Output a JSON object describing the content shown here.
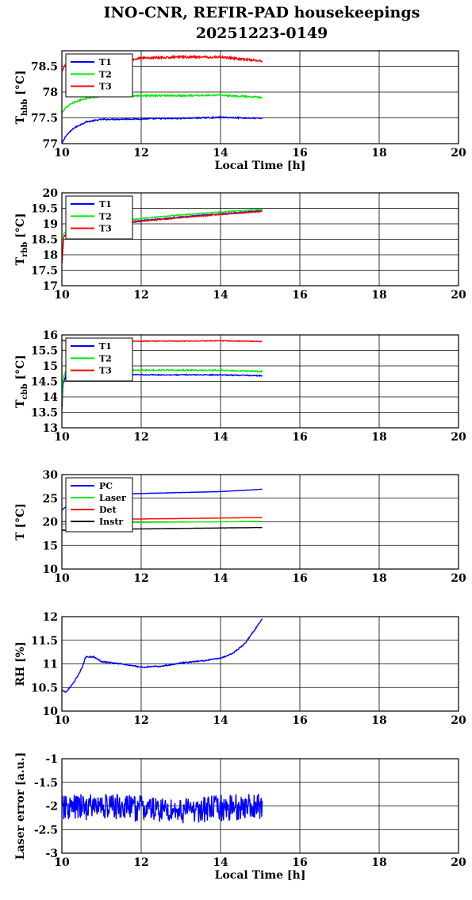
{
  "figure": {
    "title_line1": "INO-CNR, REFIR-PAD housekeepings",
    "title_line2": "20251223-0149"
  },
  "chart_data": [
    {
      "type": "line",
      "id": "hbb",
      "ylabel_main": "T",
      "ylabel_sub": "hbb",
      "ylabel_unit": " [°C]",
      "xlabel": "Local Time [h]",
      "xlim": [
        10,
        20
      ],
      "ylim": [
        77,
        78.8
      ],
      "xticks": [
        10,
        12,
        14,
        16,
        18,
        20
      ],
      "yticks": [
        77,
        77.5,
        78,
        78.5
      ],
      "ytick_labels": [
        "77",
        "77.5",
        "78",
        "78.5"
      ],
      "grid": true,
      "legend": "top-left",
      "series": [
        {
          "name": "T1",
          "color": "#0000ff",
          "noise": 0.012,
          "x": [
            10.0,
            10.1,
            10.3,
            10.6,
            11.0,
            12.0,
            13.0,
            14.0,
            15.05
          ],
          "y": [
            77.0,
            77.15,
            77.3,
            77.42,
            77.47,
            77.48,
            77.49,
            77.51,
            77.49
          ]
        },
        {
          "name": "T2",
          "color": "#00ee00",
          "noise": 0.015,
          "x": [
            10.0,
            10.1,
            10.3,
            10.6,
            11.0,
            12.0,
            13.0,
            14.0,
            15.05
          ],
          "y": [
            77.6,
            77.7,
            77.8,
            77.88,
            77.92,
            77.93,
            77.93,
            77.94,
            77.9
          ]
        },
        {
          "name": "T3",
          "color": "#ff0000",
          "noise": 0.02,
          "x": [
            10.0,
            10.1,
            10.3,
            10.8,
            11.5,
            12.0,
            13.0,
            14.0,
            15.05
          ],
          "y": [
            78.4,
            78.55,
            78.65,
            78.62,
            78.6,
            78.66,
            78.68,
            78.68,
            78.6
          ]
        }
      ]
    },
    {
      "type": "line",
      "id": "rbb",
      "ylabel_main": "T",
      "ylabel_sub": "rbb",
      "ylabel_unit": " [°C]",
      "xlabel": "",
      "xlim": [
        10,
        20
      ],
      "ylim": [
        17,
        20
      ],
      "xticks": [
        10,
        12,
        14,
        16,
        18,
        20
      ],
      "yticks": [
        17,
        17.5,
        18,
        18.5,
        19,
        19.5,
        20
      ],
      "ytick_labels": [
        "17",
        "17.5",
        "18",
        "18.5",
        "19",
        "19.5",
        "20"
      ],
      "grid": true,
      "legend": "top-left",
      "series": [
        {
          "name": "T1",
          "color": "#0000ff",
          "noise": 0.015,
          "x": [
            10.0,
            10.05,
            10.3,
            11.0,
            12.0,
            13.0,
            14.0,
            15.05
          ],
          "y": [
            17.8,
            18.6,
            18.8,
            18.95,
            19.1,
            19.22,
            19.32,
            19.42
          ]
        },
        {
          "name": "T2",
          "color": "#00ee00",
          "noise": 0.015,
          "x": [
            10.0,
            10.05,
            10.3,
            11.0,
            12.0,
            13.0,
            14.0,
            15.05
          ],
          "y": [
            17.9,
            18.7,
            18.85,
            19.02,
            19.17,
            19.29,
            19.38,
            19.47
          ]
        },
        {
          "name": "T3",
          "color": "#ff0000",
          "noise": 0.015,
          "x": [
            10.0,
            10.05,
            10.3,
            11.0,
            12.0,
            13.0,
            14.0,
            15.05
          ],
          "y": [
            17.7,
            18.6,
            18.78,
            18.93,
            19.08,
            19.2,
            19.3,
            19.4
          ]
        }
      ]
    },
    {
      "type": "line",
      "id": "cbb",
      "ylabel_main": "T",
      "ylabel_sub": "cbb",
      "ylabel_unit": " [°C]",
      "xlabel": "",
      "xlim": [
        10,
        20
      ],
      "ylim": [
        13,
        16
      ],
      "xticks": [
        10,
        12,
        14,
        16,
        18,
        20
      ],
      "yticks": [
        13,
        13.5,
        14,
        14.5,
        15,
        15.5,
        16
      ],
      "ytick_labels": [
        "13",
        "13.5",
        "14",
        "14.5",
        "15",
        "15.5",
        "16"
      ],
      "grid": true,
      "legend": "top-left",
      "series": [
        {
          "name": "T1",
          "color": "#0000ff",
          "noise": 0.015,
          "x": [
            10.0,
            10.03,
            10.1,
            10.3,
            11.0,
            12.0,
            13.0,
            14.0,
            15.05
          ],
          "y": [
            13.6,
            14.4,
            14.7,
            14.75,
            14.72,
            14.71,
            14.71,
            14.71,
            14.68
          ]
        },
        {
          "name": "T2",
          "color": "#00ee00",
          "noise": 0.02,
          "x": [
            10.0,
            10.03,
            10.1,
            10.3,
            11.0,
            12.0,
            13.0,
            14.0,
            15.05
          ],
          "y": [
            13.8,
            14.6,
            14.85,
            14.88,
            14.87,
            14.86,
            14.86,
            14.86,
            14.82
          ]
        },
        {
          "name": "T3",
          "color": "#ff0000",
          "noise": 0.012,
          "x": [
            10.0,
            10.3,
            11.0,
            12.0,
            13.0,
            14.0,
            15.05
          ],
          "y": [
            15.82,
            15.8,
            15.79,
            15.8,
            15.8,
            15.81,
            15.79
          ]
        }
      ]
    },
    {
      "type": "line",
      "id": "temps",
      "ylabel_main": "T [°C]",
      "ylabel_sub": "",
      "ylabel_unit": "",
      "xlabel": "",
      "xlim": [
        10,
        20
      ],
      "ylim": [
        10,
        30
      ],
      "xticks": [
        10,
        12,
        14,
        16,
        18,
        20
      ],
      "yticks": [
        10,
        15,
        20,
        25,
        30
      ],
      "ytick_labels": [
        "10",
        "15",
        "20",
        "25",
        "30"
      ],
      "grid": true,
      "legend": "top-left",
      "series": [
        {
          "name": "PC",
          "color": "#0000ff",
          "noise": 0.03,
          "x": [
            10.0,
            10.3,
            11.0,
            12.0,
            13.0,
            14.0,
            15.05
          ],
          "y": [
            22.5,
            24.5,
            25.7,
            26.0,
            26.2,
            26.4,
            26.9
          ]
        },
        {
          "name": "Laser",
          "color": "#00ee00",
          "noise": 0.03,
          "x": [
            10.0,
            10.3,
            11.0,
            12.0,
            13.0,
            14.0,
            15.05
          ],
          "y": [
            19.5,
            19.7,
            19.8,
            19.9,
            19.95,
            20.0,
            20.1
          ]
        },
        {
          "name": "Det",
          "color": "#ff0000",
          "noise": 0.02,
          "x": [
            10.0,
            10.3,
            11.0,
            12.0,
            13.0,
            14.0,
            15.05
          ],
          "y": [
            20.0,
            20.3,
            20.5,
            20.6,
            20.7,
            20.8,
            20.9
          ]
        },
        {
          "name": "Instr",
          "color": "#000000",
          "noise": 0.02,
          "x": [
            10.0,
            10.3,
            11.0,
            12.0,
            13.0,
            14.0,
            15.05
          ],
          "y": [
            18.2,
            18.3,
            18.4,
            18.5,
            18.6,
            18.7,
            18.8
          ]
        }
      ]
    },
    {
      "type": "line",
      "id": "rh",
      "ylabel_main": "RH [%]",
      "ylabel_sub": "",
      "ylabel_unit": "",
      "xlabel": "",
      "xlim": [
        10,
        20
      ],
      "ylim": [
        10,
        12
      ],
      "xticks": [
        10,
        12,
        14,
        16,
        18,
        20
      ],
      "yticks": [
        10,
        10.5,
        11,
        11.5,
        12
      ],
      "ytick_labels": [
        "10",
        "10.5",
        "11",
        "11.5",
        "12"
      ],
      "grid": true,
      "legend": "none",
      "series": [
        {
          "name": "",
          "color": "#0000ff",
          "noise": 0.012,
          "x": [
            10.0,
            10.1,
            10.3,
            10.5,
            10.6,
            10.8,
            11.0,
            11.5,
            12.0,
            12.5,
            13.0,
            13.5,
            14.0,
            14.3,
            14.6,
            14.8,
            15.05
          ],
          "y": [
            10.45,
            10.4,
            10.6,
            10.9,
            11.15,
            11.15,
            11.05,
            11.0,
            10.93,
            10.95,
            11.02,
            11.06,
            11.12,
            11.22,
            11.42,
            11.65,
            11.95
          ]
        }
      ]
    },
    {
      "type": "line",
      "id": "laser",
      "ylabel_main": "Laser error [a.u.]",
      "ylabel_sub": "",
      "ylabel_unit": "",
      "xlabel": "Local Time [h]",
      "xlim": [
        10,
        20
      ],
      "ylim": [
        -3,
        -1
      ],
      "xticks": [
        10,
        12,
        14,
        16,
        18,
        20
      ],
      "yticks": [
        -3,
        -2.5,
        -2,
        -1.5,
        -1
      ],
      "ytick_labels": [
        "-3",
        "-2.5",
        "-2",
        "-1.5",
        "-1"
      ],
      "grid": true,
      "legend": "none",
      "series": [
        {
          "name": "",
          "color": "#0000ff",
          "noise": 0.28,
          "x": [
            10.0,
            11.0,
            12.0,
            13.0,
            14.0,
            15.05
          ],
          "y": [
            -2.05,
            -2.0,
            -2.05,
            -2.1,
            -2.05,
            -2.0
          ]
        }
      ]
    }
  ]
}
